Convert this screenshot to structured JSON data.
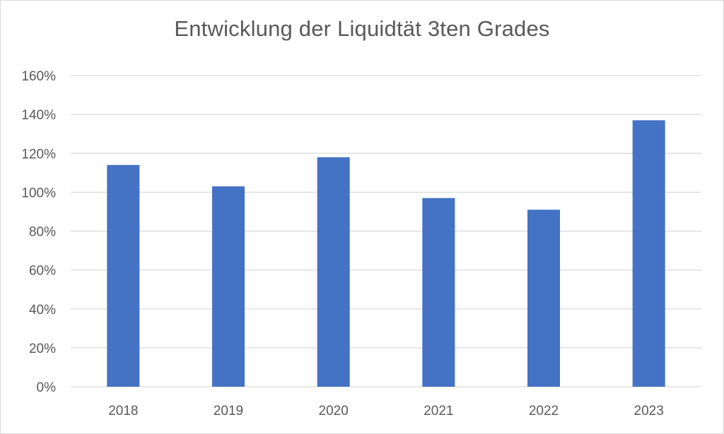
{
  "chart_data": {
    "type": "bar",
    "title": "Entwicklung der Liquidtät 3ten Grades",
    "categories": [
      "2018",
      "2019",
      "2020",
      "2021",
      "2022",
      "2023"
    ],
    "values": [
      114,
      103,
      118,
      97,
      91,
      137
    ],
    "ylim": [
      0,
      160
    ],
    "yticks": [
      0,
      20,
      40,
      60,
      80,
      100,
      120,
      140,
      160
    ],
    "ytick_labels": [
      "0%",
      "20%",
      "40%",
      "60%",
      "80%",
      "100%",
      "120%",
      "140%",
      "160%"
    ],
    "grid": true,
    "bar_color": "#4472c4",
    "grid_color": "#d9d9d9",
    "text_color": "#595959"
  }
}
